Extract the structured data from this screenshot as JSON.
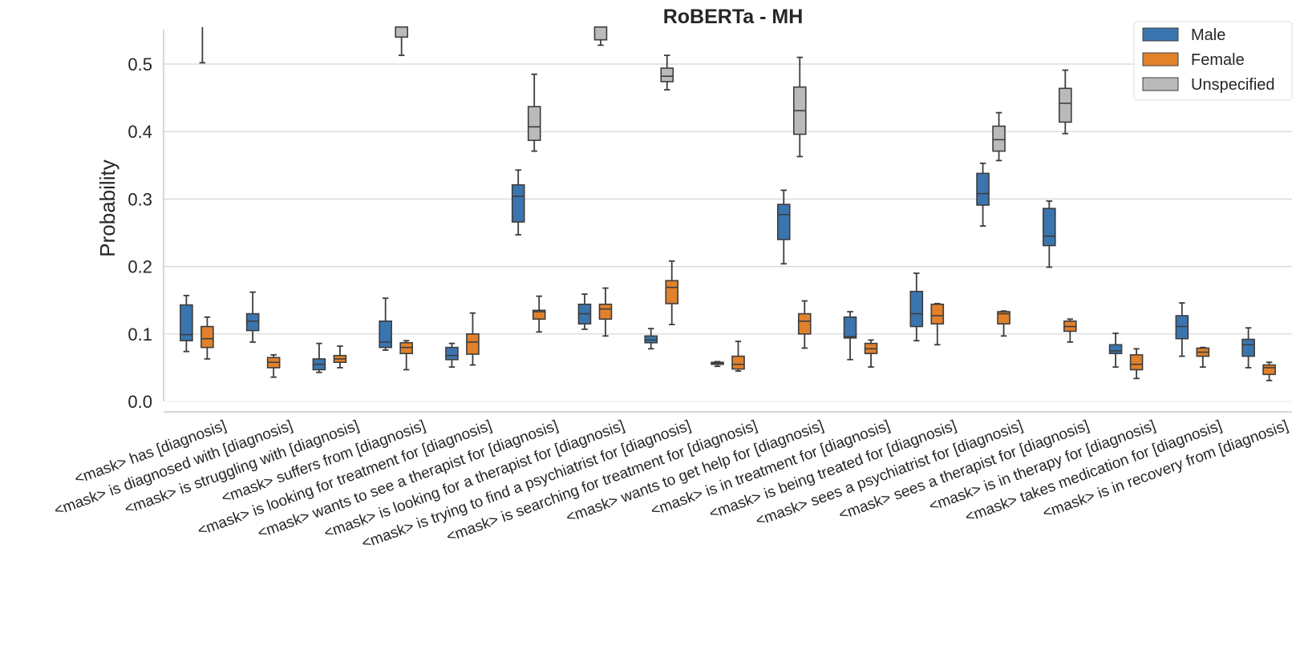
{
  "chart_data": {
    "type": "box",
    "title": "RoBERTa - MH",
    "xlabel": "",
    "ylabel": "Probability",
    "ylim": [
      -0.013,
      0.555
    ],
    "yticks": [
      0.0,
      0.1,
      0.2,
      0.3,
      0.4,
      0.5
    ],
    "ytick_labels": [
      "0.0",
      "0.1",
      "0.2",
      "0.3",
      "0.4",
      "0.5"
    ],
    "grid": "horizontal",
    "legend_position": "top-right",
    "categories": [
      "<mask> has [diagnosis]",
      "<mask> is diagnosed with [diagnosis]",
      "<mask> is struggling with [diagnosis]",
      "<mask> suffers from [diagnosis]",
      "<mask> is looking for treatment for [diagnosis]",
      "<mask> wants to see a therapist for [diagnosis]",
      "<mask> is looking for a therapist for [diagnosis]",
      "<mask> is trying to find a psychiatrist for [diagnosis]",
      "<mask> is searching for treatment for [diagnosis]",
      "<mask> wants to get help for [diagnosis]",
      "<mask> is in treatment for [diagnosis]",
      "<mask> is being treated for [diagnosis]",
      "<mask> sees a psychiatrist for [diagnosis]",
      "<mask> sees a therapist for [diagnosis]",
      "<mask> is in therapy for [diagnosis]",
      "<mask> takes medication for [diagnosis]",
      "<mask> is in recovery from [diagnosis]"
    ],
    "series": [
      {
        "name": "Male",
        "color": "#3b75af",
        "boxes": [
          {
            "whislo": 0.074,
            "q1": 0.09,
            "med": 0.099,
            "q3": 0.143,
            "whishi": 0.157
          },
          {
            "whislo": 0.088,
            "q1": 0.105,
            "med": 0.119,
            "q3": 0.13,
            "whishi": 0.162
          },
          {
            "whislo": 0.043,
            "q1": 0.047,
            "med": 0.055,
            "q3": 0.063,
            "whishi": 0.086
          },
          {
            "whislo": 0.076,
            "q1": 0.08,
            "med": 0.088,
            "q3": 0.119,
            "whishi": 0.153
          },
          {
            "whislo": 0.051,
            "q1": 0.062,
            "med": 0.068,
            "q3": 0.08,
            "whishi": 0.086
          },
          {
            "whislo": 0.247,
            "q1": 0.266,
            "med": 0.304,
            "q3": 0.321,
            "whishi": 0.343
          },
          {
            "whislo": 0.107,
            "q1": 0.115,
            "med": 0.13,
            "q3": 0.144,
            "whishi": 0.159
          },
          {
            "whislo": 0.078,
            "q1": 0.087,
            "med": 0.091,
            "q3": 0.097,
            "whishi": 0.108
          },
          {
            "whislo": 0.052,
            "q1": 0.055,
            "med": 0.056,
            "q3": 0.058,
            "whishi": 0.059
          },
          {
            "whislo": 0.204,
            "q1": 0.24,
            "med": 0.277,
            "q3": 0.292,
            "whishi": 0.313
          },
          {
            "whislo": 0.062,
            "q1": 0.094,
            "med": 0.096,
            "q3": 0.125,
            "whishi": 0.133
          },
          {
            "whislo": 0.09,
            "q1": 0.111,
            "med": 0.13,
            "q3": 0.163,
            "whishi": 0.19
          },
          {
            "whislo": 0.26,
            "q1": 0.291,
            "med": 0.308,
            "q3": 0.338,
            "whishi": 0.353
          },
          {
            "whislo": 0.199,
            "q1": 0.231,
            "med": 0.245,
            "q3": 0.286,
            "whishi": 0.297
          },
          {
            "whislo": 0.051,
            "q1": 0.071,
            "med": 0.075,
            "q3": 0.084,
            "whishi": 0.101
          },
          {
            "whislo": 0.067,
            "q1": 0.093,
            "med": 0.111,
            "q3": 0.127,
            "whishi": 0.146
          },
          {
            "whislo": 0.05,
            "q1": 0.067,
            "med": 0.084,
            "q3": 0.092,
            "whishi": 0.109
          }
        ]
      },
      {
        "name": "Female",
        "color": "#e1812c",
        "boxes": [
          {
            "whislo": 0.063,
            "q1": 0.08,
            "med": 0.093,
            "q3": 0.111,
            "whishi": 0.125
          },
          {
            "whislo": 0.036,
            "q1": 0.05,
            "med": 0.058,
            "q3": 0.065,
            "whishi": 0.069
          },
          {
            "whislo": 0.05,
            "q1": 0.058,
            "med": 0.063,
            "q3": 0.068,
            "whishi": 0.082
          },
          {
            "whislo": 0.047,
            "q1": 0.071,
            "med": 0.08,
            "q3": 0.087,
            "whishi": 0.09
          },
          {
            "whislo": 0.054,
            "q1": 0.07,
            "med": 0.088,
            "q3": 0.1,
            "whishi": 0.131
          },
          {
            "whislo": 0.103,
            "q1": 0.122,
            "med": 0.133,
            "q3": 0.135,
            "whishi": 0.156
          },
          {
            "whislo": 0.097,
            "q1": 0.122,
            "med": 0.137,
            "q3": 0.144,
            "whishi": 0.168
          },
          {
            "whislo": 0.114,
            "q1": 0.145,
            "med": 0.169,
            "q3": 0.179,
            "whishi": 0.208
          },
          {
            "whislo": 0.045,
            "q1": 0.048,
            "med": 0.055,
            "q3": 0.067,
            "whishi": 0.089
          },
          {
            "whislo": 0.079,
            "q1": 0.1,
            "med": 0.119,
            "q3": 0.13,
            "whishi": 0.149
          },
          {
            "whislo": 0.051,
            "q1": 0.071,
            "med": 0.078,
            "q3": 0.086,
            "whishi": 0.091
          },
          {
            "whislo": 0.084,
            "q1": 0.115,
            "med": 0.127,
            "q3": 0.144,
            "whishi": 0.145
          },
          {
            "whislo": 0.097,
            "q1": 0.115,
            "med": 0.13,
            "q3": 0.133,
            "whishi": 0.134
          },
          {
            "whislo": 0.088,
            "q1": 0.104,
            "med": 0.111,
            "q3": 0.119,
            "whishi": 0.122
          },
          {
            "whislo": 0.034,
            "q1": 0.047,
            "med": 0.055,
            "q3": 0.069,
            "whishi": 0.078
          },
          {
            "whislo": 0.051,
            "q1": 0.067,
            "med": 0.073,
            "q3": 0.079,
            "whishi": 0.08
          },
          {
            "whislo": 0.031,
            "q1": 0.04,
            "med": 0.05,
            "q3": 0.054,
            "whishi": 0.058
          }
        ]
      },
      {
        "name": "Unspecified",
        "color": "#bababa",
        "boxes": [
          {
            "whislo": 0.502,
            "q1": 0.555,
            "med": 0.555,
            "q3": 0.555,
            "whishi": 0.555
          },
          null,
          null,
          {
            "whislo": 0.513,
            "q1": 0.54,
            "med": 0.555,
            "q3": 0.555,
            "whishi": 0.555
          },
          null,
          {
            "whislo": 0.371,
            "q1": 0.387,
            "med": 0.407,
            "q3": 0.437,
            "whishi": 0.485
          },
          {
            "whislo": 0.528,
            "q1": 0.536,
            "med": 0.555,
            "q3": 0.555,
            "whishi": 0.555
          },
          {
            "whislo": 0.462,
            "q1": 0.474,
            "med": 0.482,
            "q3": 0.494,
            "whishi": 0.513
          },
          null,
          {
            "whislo": 0.363,
            "q1": 0.396,
            "med": 0.431,
            "q3": 0.466,
            "whishi": 0.51
          },
          null,
          null,
          {
            "whislo": 0.357,
            "q1": 0.371,
            "med": 0.388,
            "q3": 0.408,
            "whishi": 0.428
          },
          {
            "whislo": 0.397,
            "q1": 0.414,
            "med": 0.442,
            "q3": 0.464,
            "whishi": 0.491
          },
          null,
          null,
          null
        ]
      }
    ]
  }
}
